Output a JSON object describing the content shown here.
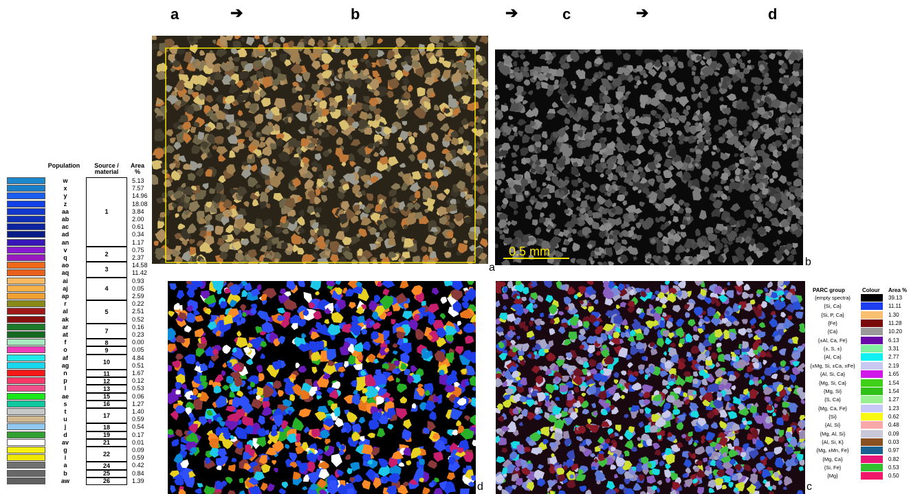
{
  "workflow": {
    "steps": [
      "a",
      "b",
      "c",
      "d"
    ],
    "arrow_glyph": "➔"
  },
  "panels": {
    "a": {
      "label": "a",
      "colors": [
        "#6e6448",
        "#8a7a58",
        "#4a4230",
        "#a08050",
        "#c07838",
        "#d8c070",
        "#3a3428",
        "#9a9a90",
        "#b09060",
        "#7a5a38"
      ],
      "frame_color": "#f2e200"
    },
    "b": {
      "label": "b",
      "scalebar": "0.5 mm",
      "scalebar_color": "#f2e200",
      "colors": [
        "#3a3a3a",
        "#505050",
        "#6a6a6a",
        "#7c7c7c",
        "#454545",
        "#8a8a8a",
        "#5a5a5a"
      ]
    },
    "d": {
      "label": "d",
      "colors": [
        "#1f3fe8",
        "#1f3fe8",
        "#1f3fe8",
        "#2a54f0",
        "#0a8ad8",
        "#e8761c",
        "#ff8a28",
        "#1ec8e8",
        "#6a1ab8",
        "#c81e6e",
        "#e8d020",
        "#28b028",
        "#8a3a3a",
        "#3050ff",
        "#ffffff"
      ]
    },
    "c": {
      "label": "c",
      "colors": [
        "#5a78d8",
        "#7a8ad8",
        "#8a1a28",
        "#6a1424",
        "#a8a8c8",
        "#8a60c0",
        "#3a4ab8",
        "#18d8e0",
        "#9a8ab0",
        "#c8c8e8",
        "#2850d8",
        "#d0e030",
        "#40c040"
      ]
    }
  },
  "population_table": {
    "headers": {
      "population": "Population",
      "source": "Source / material",
      "area": "Area %"
    },
    "rows": [
      {
        "pop": "w",
        "area": "5.13",
        "color": "#1e88cc"
      },
      {
        "pop": "x",
        "area": "7.57",
        "color": "#1a7ec8"
      },
      {
        "pop": "y",
        "area": "14.96",
        "color": "#1a5ef0"
      },
      {
        "pop": "z",
        "area": "18.08",
        "color": "#1440e8"
      },
      {
        "pop": "aa",
        "area": "3.84",
        "color": "#1238d0"
      },
      {
        "pop": "ab",
        "area": "2.00",
        "color": "#1030b8"
      },
      {
        "pop": "ac",
        "area": "0.61",
        "color": "#0c24a0"
      },
      {
        "pop": "ad",
        "area": "0.34",
        "color": "#0a1c88"
      },
      {
        "pop": "an",
        "area": "1.17",
        "color": "#3818b8"
      },
      {
        "pop": "v",
        "area": "0.75",
        "color": "#8a1ad0"
      },
      {
        "pop": "q",
        "area": "2.37",
        "color": "#9a1cc0"
      },
      {
        "pop": "ao",
        "area": "14.58",
        "color": "#f06818"
      },
      {
        "pop": "aq",
        "area": "11.42",
        "color": "#e8601c"
      },
      {
        "pop": "ai",
        "area": "0.93",
        "color": "#f8b860"
      },
      {
        "pop": "aj",
        "area": "0.05",
        "color": "#f8b048"
      },
      {
        "pop": "ap",
        "area": "2.59",
        "color": "#f0a030"
      },
      {
        "pop": "r",
        "area": "0.22",
        "color": "#8a8a18"
      },
      {
        "pop": "al",
        "area": "2.51",
        "color": "#a01818"
      },
      {
        "pop": "ak",
        "area": "0.52",
        "color": "#8a1010"
      },
      {
        "pop": "ar",
        "area": "0.16",
        "color": "#1a7a2a"
      },
      {
        "pop": "at",
        "area": "0.23",
        "color": "#146a20"
      },
      {
        "pop": "f",
        "area": "0.00",
        "color": "#a8e8c0"
      },
      {
        "pop": "o",
        "area": "0.05",
        "color": "#f03cb8"
      },
      {
        "pop": "af",
        "area": "4.84",
        "color": "#20e8e8"
      },
      {
        "pop": "ag",
        "area": "0.51",
        "color": "#18d8f0"
      },
      {
        "pop": "n",
        "area": "1.67",
        "color": "#f81818"
      },
      {
        "pop": "p",
        "area": "0.12",
        "color": "#f83868"
      },
      {
        "pop": "l",
        "area": "0.53",
        "color": "#f0508a"
      },
      {
        "pop": "ae",
        "area": "0.06",
        "color": "#18e818"
      },
      {
        "pop": "s",
        "area": "1.27",
        "color": "#10c8a0"
      },
      {
        "pop": "t",
        "area": "1.40",
        "color": "#c8c8c8"
      },
      {
        "pop": "u",
        "area": "0.59",
        "color": "#d0b890"
      },
      {
        "pop": "j",
        "area": "0.54",
        "color": "#90c8f0"
      },
      {
        "pop": "d",
        "area": "0.17",
        "color": "#30a030"
      },
      {
        "pop": "av",
        "area": "0.01",
        "color": "#ffffff"
      },
      {
        "pop": "g",
        "area": "0.09",
        "color": "#f8f010"
      },
      {
        "pop": "i",
        "area": "0.59",
        "color": "#f0e800"
      },
      {
        "pop": "a",
        "area": "0.42",
        "color": "#707070"
      },
      {
        "pop": "b",
        "area": "0.84",
        "color": "#686868"
      },
      {
        "pop": "aw",
        "area": "1.39",
        "color": "#606060"
      }
    ],
    "sources": [
      {
        "label": "1",
        "start": 0,
        "span": 9
      },
      {
        "label": "2",
        "start": 9,
        "span": 2
      },
      {
        "label": "3",
        "start": 11,
        "span": 2
      },
      {
        "label": "4",
        "start": 13,
        "span": 3
      },
      {
        "label": "5",
        "start": 16,
        "span": 3
      },
      {
        "label": "7",
        "start": 19,
        "span": 2
      },
      {
        "label": "8",
        "start": 21,
        "span": 1
      },
      {
        "label": "9",
        "start": 22,
        "span": 1
      },
      {
        "label": "10",
        "start": 23,
        "span": 2
      },
      {
        "label": "11",
        "start": 25,
        "span": 1
      },
      {
        "label": "12",
        "start": 26,
        "span": 1
      },
      {
        "label": "13",
        "start": 27,
        "span": 1
      },
      {
        "label": "15",
        "start": 28,
        "span": 1
      },
      {
        "label": "16",
        "start": 29,
        "span": 1
      },
      {
        "label": "17",
        "start": 30,
        "span": 2
      },
      {
        "label": "18",
        "start": 32,
        "span": 1
      },
      {
        "label": "19",
        "start": 33,
        "span": 1
      },
      {
        "label": "21",
        "start": 34,
        "span": 1
      },
      {
        "label": "22",
        "start": 35,
        "span": 2
      },
      {
        "label": "24",
        "start": 37,
        "span": 1
      },
      {
        "label": "25",
        "start": 38,
        "span": 1
      },
      {
        "label": "26",
        "start": 39,
        "span": 1
      }
    ]
  },
  "parc_legend": {
    "headers": {
      "group": "PARC group",
      "colour": "Colour",
      "area": "Area %"
    },
    "rows": [
      {
        "group": "{empty spectra}",
        "area": "39.13",
        "color": "#000000"
      },
      {
        "group": "{Si, Ca}",
        "area": "11.11",
        "color": "#1f3ef0"
      },
      {
        "group": "{Si, P, Ca}",
        "area": "1.30",
        "color": "#f8c070"
      },
      {
        "group": "{Fe}",
        "area": "11.28",
        "color": "#7a0a0a"
      },
      {
        "group": "{Ca}",
        "area": "10.20",
        "color": "#9a9a9a"
      },
      {
        "group": "{±Al, Ca, Fe}",
        "area": "6.13",
        "color": "#6a0aa8"
      },
      {
        "group": "{±, S, ±}",
        "area": "3.31",
        "color": "#80f0a0"
      },
      {
        "group": "{Al, Ca}",
        "area": "2.77",
        "color": "#10f0f0"
      },
      {
        "group": "{±Mg, Si, ±Ca, ±Fe}",
        "area": "2.19",
        "color": "#c8c8f0"
      },
      {
        "group": "{Al, Si, Ca}",
        "area": "1.65",
        "color": "#d018e8"
      },
      {
        "group": "{Mg, Si, Ca}",
        "area": "1.54",
        "color": "#40d018"
      },
      {
        "group": "{Mg, Si}",
        "area": "1.54",
        "color": "#30c018"
      },
      {
        "group": "{S, Ca}",
        "area": "1.27",
        "color": "#98f090"
      },
      {
        "group": "{Mg, Ca, Fe}",
        "area": "1.23",
        "color": "#c8c8f8"
      },
      {
        "group": "{Si}",
        "area": "0.62",
        "color": "#f8f810"
      },
      {
        "group": "{Al, Si}",
        "area": "0.48",
        "color": "#f8a8a8"
      },
      {
        "group": "{Mg, Al, Si}",
        "area": "0.09",
        "color": "#c8c8d8"
      },
      {
        "group": "{Al, Si, K}",
        "area": "0.03",
        "color": "#8a5020"
      },
      {
        "group": "{Mg, ±Mn, Fe}",
        "area": "0.97",
        "color": "#1a6090"
      },
      {
        "group": "{Mg, Ca}",
        "area": "0.82",
        "color": "#e81878"
      },
      {
        "group": "{Si, Fe}",
        "area": "0.53",
        "color": "#30c030"
      },
      {
        "group": "{Mg}",
        "area": "0.50",
        "color": "#f01868"
      }
    ]
  }
}
